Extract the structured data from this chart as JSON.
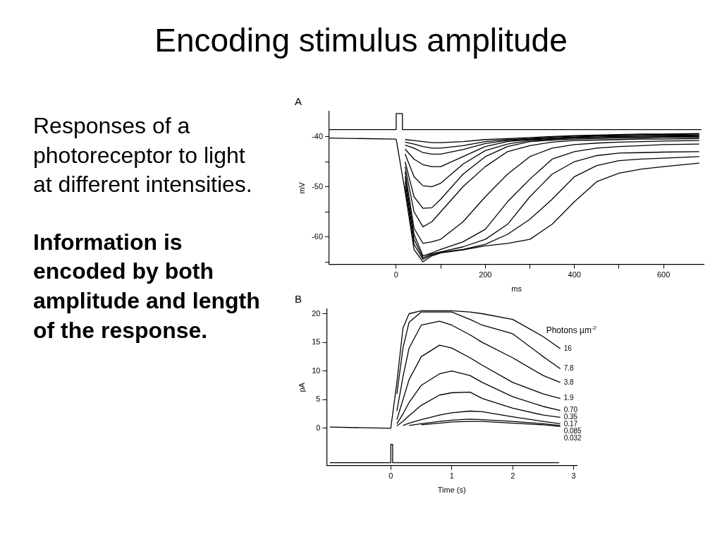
{
  "chart_data": [
    {
      "type": "other",
      "title": "Encoding stimulus amplitude",
      "annotations": [
        "Responses of a photoreceptor to light at different intensities.",
        "Information is encoded by both amplitude and length of the response."
      ]
    },
    {
      "type": "line",
      "title": "A",
      "xlabel": "ms",
      "ylabel": "mV",
      "x": [
        20,
        40,
        60,
        80,
        100,
        150,
        200,
        250,
        300,
        350,
        400,
        450,
        500,
        550,
        600,
        680
      ],
      "xlim": [
        -150,
        690
      ],
      "ylim": [
        -65.5,
        -35
      ],
      "xticks": [
        0,
        {
          "value": 100,
          "label": null
        },
        200,
        {
          "value": 300,
          "label": null
        },
        400,
        {
          "value": 500,
          "label": null
        },
        600
      ],
      "yticks": [
        -40,
        {
          "value": -45,
          "label": null
        },
        -50,
        {
          "value": -55,
          "label": null
        },
        -60,
        {
          "value": -65,
          "label": null
        }
      ],
      "grid": false,
      "legend": false,
      "series": [
        {
          "color": "#000000",
          "x": [
            -150,
            0,
            0,
            14,
            14,
            685
          ],
          "values": [
            -38.6,
            -38.6,
            -35.4,
            -35.4,
            -38.6,
            -38.6
          ]
        },
        {
          "color": "#000000",
          "x": [
            -150,
            0
          ],
          "values": [
            -40.3,
            -40.5
          ]
        },
        {
          "color": "#000000",
          "x": [
            0,
            20,
            40,
            60,
            80,
            100,
            150,
            200,
            250,
            300,
            350,
            400,
            450,
            500,
            550,
            600,
            680
          ],
          "values": [
            -40.5,
            -51,
            -62.5,
            -65,
            -63.8,
            -63.2,
            -62.6,
            -61.8,
            -61.3,
            -60.5,
            -57.5,
            -53,
            -49,
            -47.3,
            -46.5,
            -46,
            -45.3
          ]
        },
        {
          "color": "#000000",
          "values": [
            -50,
            -61.5,
            -64.5,
            -63.6,
            -63.1,
            -62.5,
            -61.5,
            -59.5,
            -56.5,
            -52.5,
            -48,
            -45.8,
            -44.8,
            -44.5,
            -44.3,
            -44
          ]
        },
        {
          "color": "#000000",
          "values": [
            -49,
            -60.5,
            -64.2,
            -63.4,
            -63,
            -62,
            -60.5,
            -57.5,
            -52,
            -47.5,
            -45,
            -43.8,
            -43.3,
            -43.2,
            -43.1,
            -43
          ]
        },
        {
          "color": "#000000",
          "values": [
            -48,
            -59.5,
            -63.8,
            -63.2,
            -62.5,
            -61,
            -58.5,
            -53,
            -48.5,
            -44.5,
            -43,
            -42.3,
            -42,
            -41.8,
            -41.6,
            -41.5
          ]
        },
        {
          "color": "#000000",
          "values": [
            -47,
            -58.3,
            -61.3,
            -61,
            -60.5,
            -57,
            -52,
            -47.5,
            -44,
            -42.3,
            -41.6,
            -41.3,
            -41.1,
            -41,
            -40.9,
            -40.8
          ]
        },
        {
          "color": "#000000",
          "values": [
            -46,
            -55,
            -58,
            -57,
            -55,
            -50,
            -46,
            -43,
            -41.8,
            -41.1,
            -40.8,
            -40.7,
            -40.6,
            -40.5,
            -40.5,
            -40.4
          ]
        },
        {
          "color": "#000000",
          "values": [
            -45,
            -52,
            -54.3,
            -54.2,
            -52.5,
            -47.5,
            -44,
            -42,
            -41,
            -40.7,
            -40.5,
            -40.4,
            -40.3,
            -40.3,
            -40.2,
            -40.2
          ]
        },
        {
          "color": "#000000",
          "values": [
            -43.5,
            -48,
            -49.8,
            -50,
            -49.3,
            -45.5,
            -42.8,
            -41.5,
            -40.8,
            -40.5,
            -40.3,
            -40.2,
            -40.1,
            -40.1,
            -40,
            -40
          ]
        },
        {
          "color": "#000000",
          "values": [
            -42.5,
            -44.5,
            -45.6,
            -46,
            -46,
            -44,
            -42,
            -41,
            -40.6,
            -40.4,
            -40.2,
            -40.1,
            -40,
            -39.9,
            -39.9,
            -39.8
          ]
        },
        {
          "color": "#000000",
          "values": [
            -41.7,
            -42.3,
            -43.2,
            -43.5,
            -43.5,
            -42.6,
            -41.4,
            -40.8,
            -40.5,
            -40.3,
            -40.1,
            -39.9,
            -39.8,
            -39.8,
            -39.7,
            -39.7
          ]
        },
        {
          "color": "#000000",
          "values": [
            -41.1,
            -41.5,
            -42,
            -42.3,
            -42.3,
            -41.8,
            -41,
            -40.6,
            -40.4,
            -40.1,
            -39.9,
            -39.8,
            -39.7,
            -39.6,
            -39.6,
            -39.5
          ]
        },
        {
          "color": "#000000",
          "values": [
            -40.6,
            -40.8,
            -41,
            -41.2,
            -41.2,
            -41,
            -40.6,
            -40.4,
            -40.2,
            -40,
            -39.8,
            -39.7,
            -39.6,
            -39.5,
            -39.5,
            -39.4
          ]
        }
      ]
    },
    {
      "type": "line",
      "title": "B",
      "xlabel": "Time (s)",
      "ylabel": "pA",
      "legend_title": "Photons µm$^{-2}$",
      "x": [
        0.1,
        0.2,
        0.3,
        0.5,
        0.8,
        1.0,
        1.3,
        1.5,
        2.0,
        2.5,
        2.78
      ],
      "xlim": [
        -1.05,
        3.05
      ],
      "ylim": [
        -6.5,
        20.8
      ],
      "xticks": [
        0,
        1,
        2,
        3
      ],
      "yticks": [
        0,
        5,
        10,
        15,
        20
      ],
      "grid": false,
      "legend": false,
      "series": [
        {
          "color": "#000000",
          "x": [
            -1,
            0,
            0,
            0.03,
            0.03,
            2.76
          ],
          "values": [
            -6,
            -6,
            -2.8,
            -2.8,
            -6,
            -6
          ]
        },
        {
          "color": "#000000",
          "x": [
            -1,
            0
          ],
          "values": [
            0.2,
            0
          ]
        },
        {
          "name": "16",
          "color": "#000000",
          "x": [
            0,
            0.1,
            0.2,
            0.3,
            0.5,
            0.8,
            1.0,
            1.3,
            1.5,
            2.0,
            2.5,
            2.78
          ],
          "values": [
            0,
            8,
            17.5,
            20,
            20.5,
            20.5,
            20.5,
            20.3,
            20,
            19,
            16,
            13.9
          ]
        },
        {
          "name": "7.8",
          "color": "#000000",
          "values": [
            6,
            14,
            18.5,
            20.3,
            20.3,
            20.3,
            19,
            18,
            16.5,
            12.5,
            10.4
          ]
        },
        {
          "name": "3.8",
          "color": "#000000",
          "values": [
            3,
            9,
            14,
            18,
            18.7,
            18,
            16.3,
            15,
            12.3,
            9.2,
            8
          ]
        },
        {
          "name": "1.9",
          "color": "#000000",
          "values": [
            1.5,
            5,
            8.5,
            12.5,
            14.5,
            14,
            12.3,
            11,
            8,
            6,
            5.2
          ]
        },
        {
          "name": "0.70",
          "color": "#000000",
          "values": [
            0.8,
            2.5,
            4.5,
            7.5,
            9.5,
            10,
            9.2,
            8,
            5.5,
            3.8,
            3.1
          ]
        },
        {
          "name": "0.35",
          "color": "#000000",
          "values": [
            0.4,
            1.2,
            2.2,
            4,
            5.8,
            6.2,
            6.3,
            5.2,
            3.5,
            2.3,
            1.9
          ]
        },
        {
          "name": "0.17",
          "color": "#000000",
          "x": [
            0.2,
            0.3,
            0.5,
            0.8,
            1.0,
            1.3,
            1.5,
            2.0,
            2.5,
            2.78
          ],
          "values": [
            0.5,
            0.9,
            1.5,
            2.3,
            2.7,
            3,
            2.9,
            2,
            1.2,
            0.8
          ]
        },
        {
          "name": "0.085",
          "color": "#000000",
          "x": [
            0.3,
            0.5,
            0.8,
            1.0,
            1.3,
            1.5,
            2.0,
            2.5,
            2.78
          ],
          "values": [
            0.5,
            0.8,
            1.2,
            1.4,
            1.6,
            1.5,
            1.2,
            0.8,
            0.5
          ]
        },
        {
          "name": "0.032",
          "color": "#000000",
          "x": [
            0.5,
            0.8,
            1.0,
            1.3,
            1.5,
            2.0,
            2.5,
            2.78
          ],
          "values": [
            0.6,
            0.9,
            1.1,
            1.2,
            1.2,
            0.9,
            0.6,
            0.3
          ]
        }
      ]
    }
  ]
}
